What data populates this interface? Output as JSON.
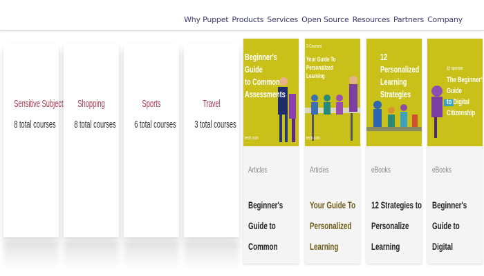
{
  "nav": {
    "items": [
      "Why Puppet",
      "Products",
      "Services",
      "Open Source",
      "Resources",
      "Partners",
      "Company"
    ]
  },
  "categories": [
    {
      "name": "Sensitive Subjects",
      "count": "8 total courses"
    },
    {
      "name": "Shopping",
      "count": "8 total courses"
    },
    {
      "name": "Sports",
      "count": "6 total courses"
    },
    {
      "name": "Travel",
      "count": "3 total courses"
    }
  ],
  "resources": [
    {
      "type": "Articles",
      "title": "Beginner's Guide to\nCommon\nAssessments",
      "image_title": "Beginner's Guide\nto Common\nAssessments",
      "image_small": "",
      "image_brand": "tech.com"
    },
    {
      "type": "Articles",
      "title": "Your Guide To\nPersonalized\nLearning",
      "image_title": "Your Guide To Personalized Learning",
      "image_small": "3 Courses",
      "image_brand": "tech.com"
    },
    {
      "type": "eBooks",
      "title": "12 Strategies to\nPersonalize Learning",
      "image_title": "12 Personalized\nLearning Strategies",
      "image_small": "",
      "image_brand": ""
    },
    {
      "type": "eBooks",
      "title": "Beginner's Guide to\nDigital Citizenship",
      "image_title": "The Beginner's Guide\nto Digital Citizenship",
      "image_small": "@ sponsor",
      "image_brand": ""
    }
  ],
  "colors": {
    "image_bg": "#c9c11a",
    "category_name": "#a8364e",
    "nav_text": "#3b3b6b"
  }
}
